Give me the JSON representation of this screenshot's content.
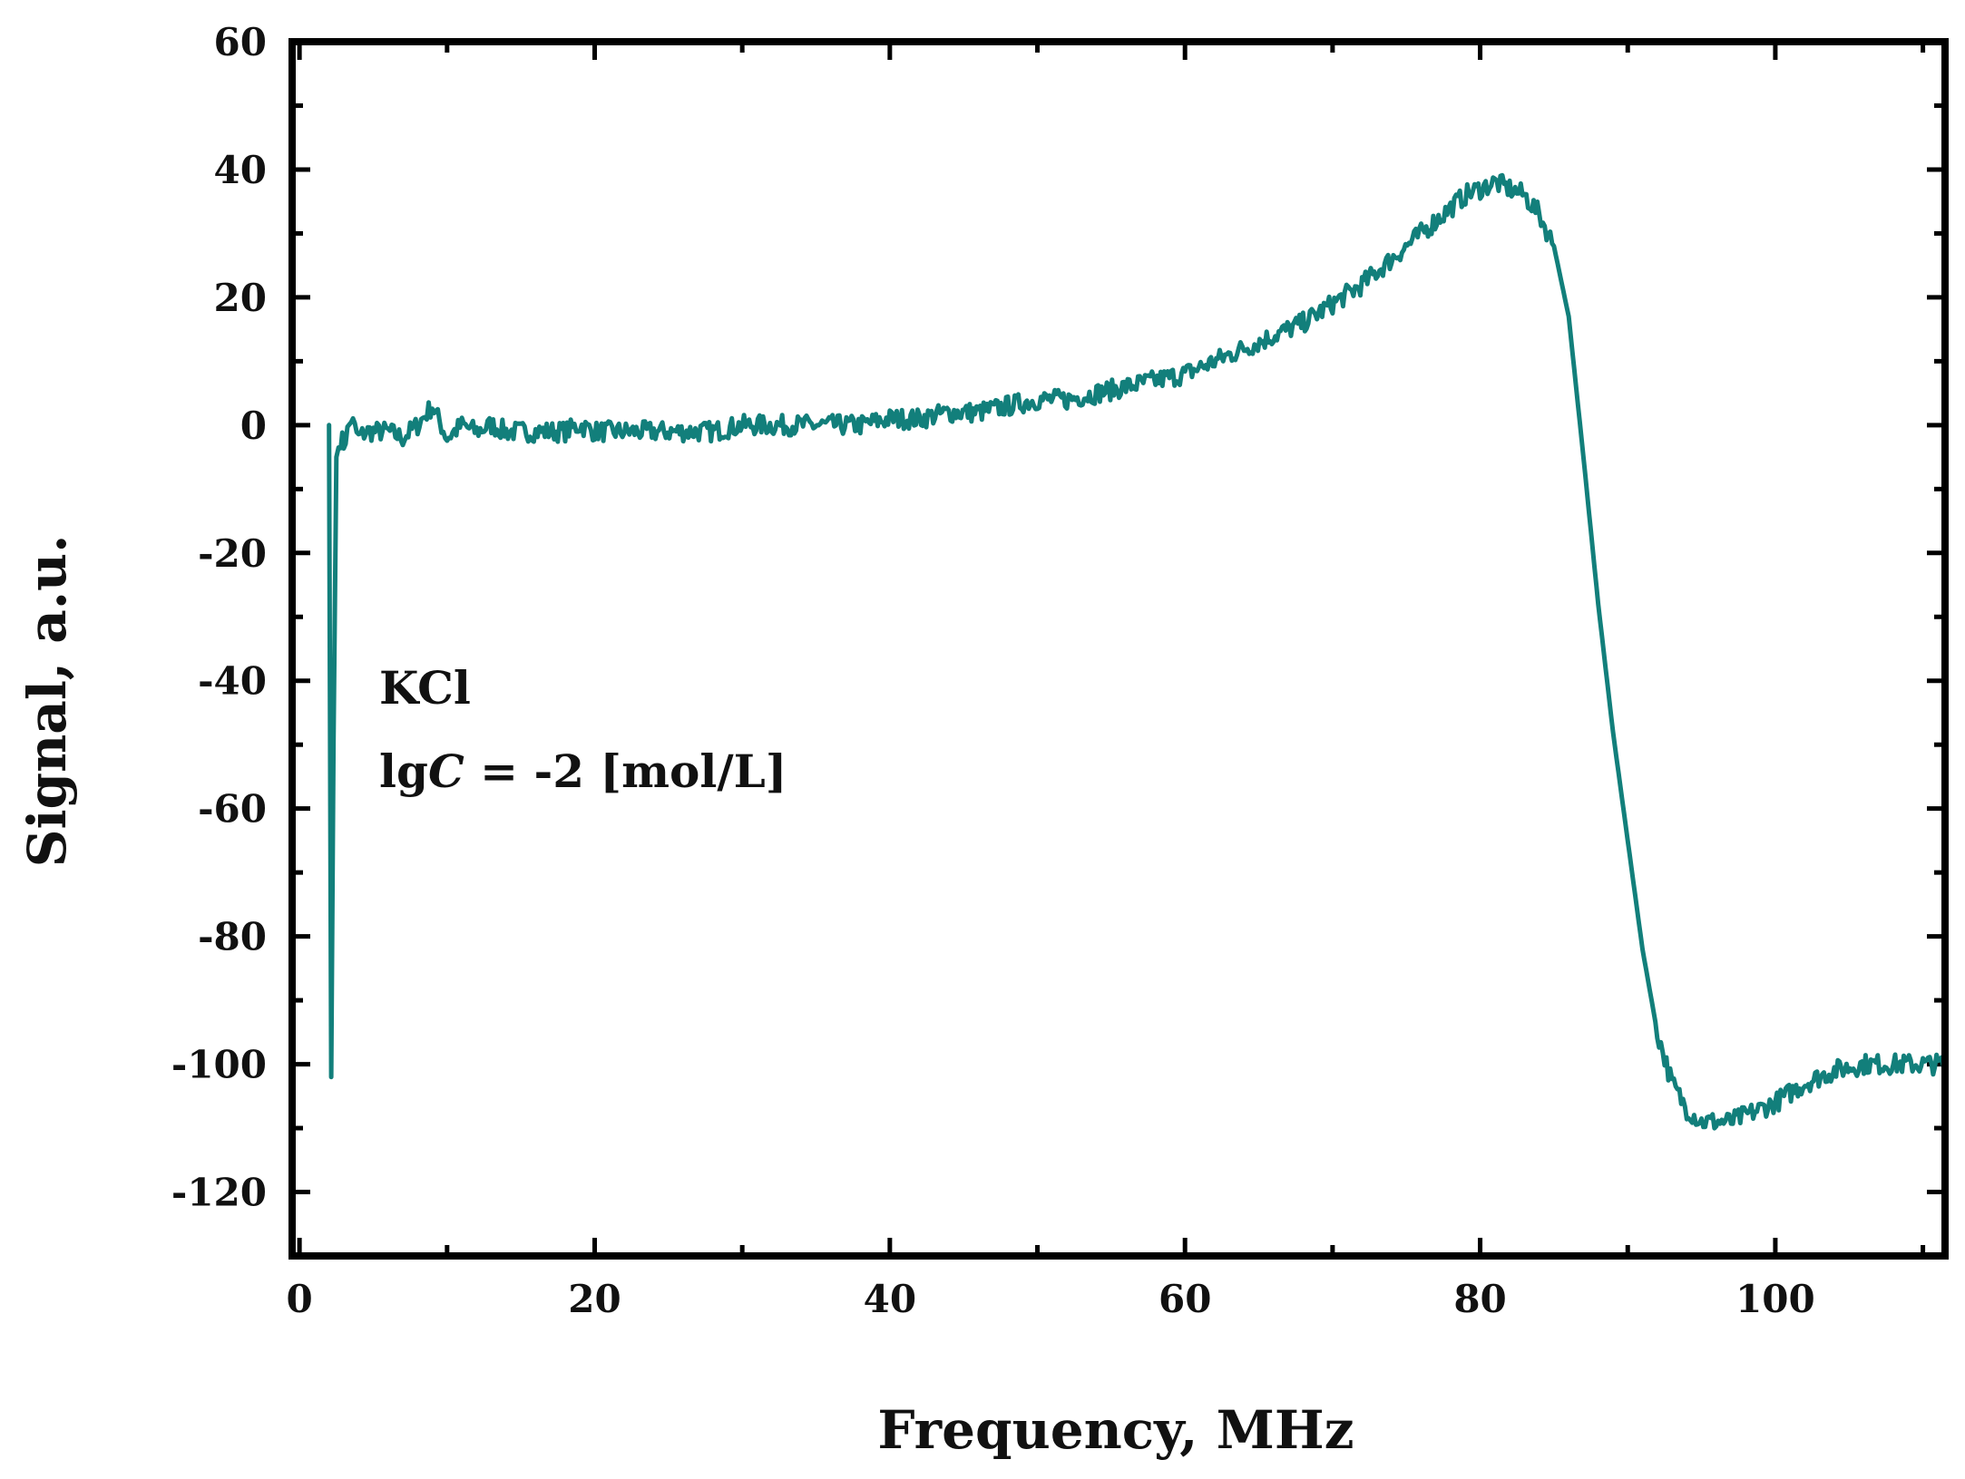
{
  "chart_data": {
    "type": "line",
    "title": "",
    "xlabel": "Frequency, MHz",
    "ylabel": "Signal, a.u.",
    "xlim": [
      -0.5,
      111.5
    ],
    "ylim": [
      -130,
      60
    ],
    "x_ticks": [
      0,
      20,
      40,
      60,
      80,
      100
    ],
    "x_tick_labels": [
      "0",
      "20",
      "40",
      "60",
      "80",
      "100"
    ],
    "y_ticks": [
      60,
      40,
      20,
      0,
      -20,
      -40,
      -60,
      -80,
      -100,
      -120
    ],
    "y_tick_labels": [
      "60",
      "40",
      "20",
      "0",
      "-20",
      "-40",
      "-60",
      "-80",
      "-100",
      "-120"
    ],
    "grid": false,
    "line_color": "#127f7b",
    "annotations": [
      {
        "name": "substance",
        "text": "KCl",
        "position": "left-middle"
      },
      {
        "name": "concentration",
        "prefix": "lg",
        "italic": "C",
        "suffix": " = -2 [mol/L]",
        "position": "left-middle"
      }
    ],
    "series": [
      {
        "name": "KCl lgC = -2",
        "x": [
          2,
          2.15,
          2.3,
          2.5,
          2.8,
          3,
          3.5,
          4,
          4.5,
          5,
          6,
          7,
          8,
          9,
          10,
          11,
          12,
          13,
          14,
          15,
          16,
          17,
          18,
          19,
          20,
          22,
          24,
          26,
          28,
          30,
          32,
          34,
          36,
          38,
          40,
          42,
          44,
          46,
          48,
          50,
          52,
          54,
          56,
          58,
          60,
          62,
          64,
          66,
          68,
          70,
          72,
          74,
          76,
          78,
          79,
          80,
          81,
          82,
          83,
          84,
          85,
          86,
          87,
          88,
          89,
          90,
          91,
          92,
          93,
          94,
          95,
          96,
          97,
          98,
          99,
          100,
          102,
          104,
          106,
          108,
          110,
          111.5
        ],
        "y": [
          0,
          -102,
          -50,
          -5,
          -2,
          -3,
          1,
          -2,
          -1,
          -1,
          -1,
          -2,
          0,
          3,
          -2,
          0,
          -1,
          0,
          -1,
          -1,
          -1,
          -1,
          -1,
          0,
          -1,
          -1,
          -1,
          -1,
          -1,
          0,
          0,
          0,
          0,
          0,
          1,
          1,
          2,
          2,
          3,
          4,
          4,
          5,
          6,
          7,
          8,
          10,
          12,
          14,
          16,
          19,
          22,
          26,
          30,
          34,
          36,
          37,
          38,
          37,
          36,
          33,
          28,
          17,
          -5,
          -28,
          -48,
          -65,
          -82,
          -95,
          -103,
          -107,
          -109,
          -109,
          -109,
          -108,
          -107,
          -106,
          -103,
          -101,
          -100,
          -100,
          -100,
          -100
        ]
      }
    ]
  }
}
